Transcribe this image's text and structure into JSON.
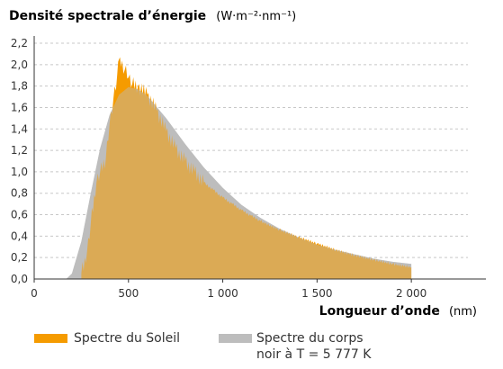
{
  "chart_data": {
    "type": "area",
    "ytitle": "Densité spectrale d’énergie",
    "yunit": "(W·m⁻²·nm⁻¹)",
    "xtitle": "Longueur d’onde",
    "xunit": "(nm)",
    "xlim": [
      0,
      2300
    ],
    "ylim": [
      0,
      2.2
    ],
    "xticks": [
      0,
      500,
      1000,
      1500,
      2000
    ],
    "xtick_labels": [
      "0",
      "500",
      "1 000",
      "1 500",
      "2 000"
    ],
    "yticks": [
      0,
      0.2,
      0.4,
      0.6,
      0.8,
      1.0,
      1.2,
      1.4,
      1.6,
      1.8,
      2.0,
      2.2
    ],
    "ytick_labels": [
      "0,0",
      "0,2",
      "0,4",
      "0,6",
      "0,8",
      "1,0",
      "1,2",
      "1,4",
      "1,6",
      "1,8",
      "2,0",
      "2,2"
    ],
    "grid": "horizontal dashed",
    "legend_position": "bottom",
    "series": [
      {
        "name": "Spectre du Soleil",
        "color": "#f59b00",
        "x": [
          250,
          280,
          300,
          330,
          350,
          380,
          400,
          420,
          440,
          450,
          460,
          480,
          500,
          520,
          550,
          600,
          650,
          700,
          750,
          800,
          850,
          900,
          950,
          1000,
          1050,
          1100,
          1150,
          1200,
          1300,
          1400,
          1500,
          1600,
          1700,
          1800,
          1900,
          2000
        ],
        "y": [
          0.05,
          0.25,
          0.52,
          0.9,
          1.0,
          1.12,
          1.45,
          1.68,
          1.9,
          2.05,
          1.98,
          1.95,
          1.88,
          1.82,
          1.8,
          1.72,
          1.57,
          1.38,
          1.22,
          1.1,
          1.0,
          0.9,
          0.83,
          0.76,
          0.7,
          0.64,
          0.59,
          0.54,
          0.46,
          0.39,
          0.33,
          0.27,
          0.22,
          0.18,
          0.14,
          0.11
        ]
      },
      {
        "name": "Spectre du corps noir à T = 5 777 K",
        "color": "#bdbdbd",
        "x": [
          170,
          200,
          250,
          300,
          350,
          400,
          450,
          500,
          550,
          600,
          700,
          800,
          900,
          1000,
          1100,
          1200,
          1300,
          1400,
          1500,
          1600,
          1700,
          1800,
          1900,
          2000
        ],
        "y": [
          0.0,
          0.05,
          0.35,
          0.8,
          1.22,
          1.53,
          1.72,
          1.79,
          1.77,
          1.71,
          1.5,
          1.26,
          1.04,
          0.85,
          0.69,
          0.57,
          0.47,
          0.39,
          0.32,
          0.27,
          0.23,
          0.19,
          0.16,
          0.14
        ]
      }
    ]
  },
  "legend": {
    "sun": {
      "label": "Spectre du Soleil",
      "color": "#f59b00"
    },
    "body": {
      "label_line1": "Spectre du corps",
      "label_line2": "noir à T = 5 777 K",
      "color": "#bdbdbd"
    }
  }
}
